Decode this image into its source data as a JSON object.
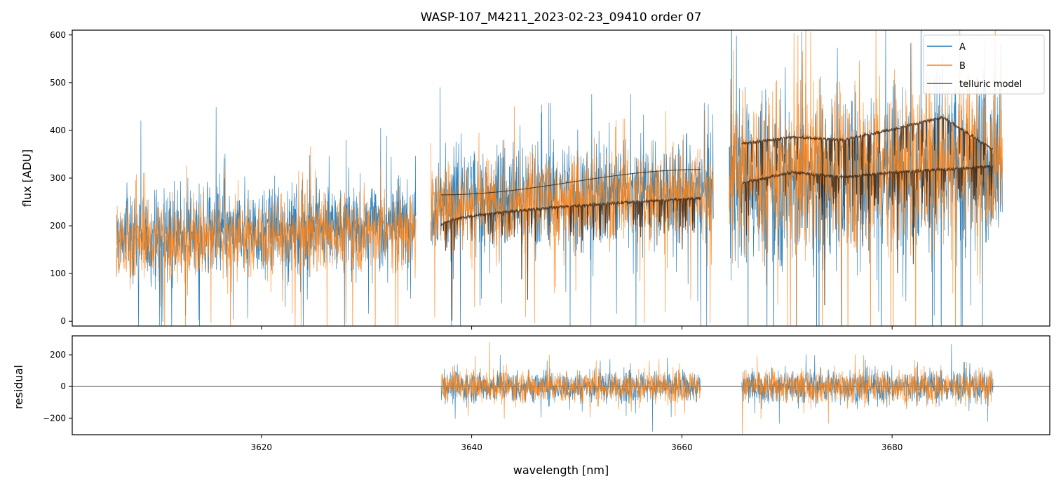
{
  "colors": {
    "A": "#1f77b4",
    "B": "#ff7f0e",
    "telluric": "#3d2412",
    "zero": "#555555"
  },
  "chart_data": [
    {
      "type": "line",
      "title": "WASP-107_M4211_2023-02-23_09410  order 07",
      "xlabel": "",
      "ylabel": "flux [ADU]",
      "xlim": [
        3602,
        3695
      ],
      "ylim": [
        -10,
        610
      ],
      "yticks": [
        0,
        100,
        200,
        300,
        400,
        500,
        600
      ],
      "xticks": [
        3620,
        3640,
        3660,
        3680
      ],
      "legend": {
        "position": "top-right",
        "entries": [
          "A",
          "B",
          "telluric model"
        ]
      },
      "segments": [
        {
          "x": [
            3606.2,
            3634.7
          ],
          "A_mean": 190,
          "A_scatter": 85,
          "B_mean": 180,
          "B_scatter": 70
        },
        {
          "x": [
            3636.1,
            3663.0
          ],
          "A_mean": 265,
          "A_scatter": 95,
          "B_mean": 255,
          "B_scatter": 80
        },
        {
          "x": [
            3664.5,
            3690.5
          ],
          "A_mean": 310,
          "A_scatter": 160,
          "B_mean": 330,
          "B_scatter": 150
        }
      ],
      "series": [
        {
          "name": "A",
          "type": "noisy-line"
        },
        {
          "name": "B",
          "type": "noisy-line"
        },
        {
          "name": "telluric model",
          "type": "line",
          "curves": [
            {
              "x": [
                3637.1,
                3661.8
              ],
              "start": 265,
              "end": 318,
              "smooth": true
            },
            {
              "x": [
                3637.1,
                3661.8
              ],
              "start": 200,
              "end": 258,
              "absorption": true
            },
            {
              "x": [
                3665.7,
                3689.6
              ],
              "base": [
                372,
                386,
                380,
                402,
                428,
                360
              ],
              "absorption": true
            },
            {
              "x": [
                3665.7,
                3689.6
              ],
              "base": [
                290,
                312,
                302,
                312,
                318,
                325
              ],
              "absorption": true
            }
          ]
        }
      ]
    },
    {
      "type": "line",
      "title": "",
      "xlabel": "wavelength [nm]",
      "ylabel": "residual",
      "xlim": [
        3602,
        3695
      ],
      "ylim": [
        -305,
        320
      ],
      "yticks": [
        200,
        0,
        -200
      ],
      "ytick_labels": [
        "200",
        "0",
        "−200"
      ],
      "xticks": [
        3620,
        3640,
        3660,
        3680
      ],
      "xtick_labels": [
        "3620",
        "3640",
        "3660",
        "3680"
      ],
      "segments": [
        {
          "x": [
            3637.1,
            3661.8
          ],
          "scatter": 85
        },
        {
          "x": [
            3665.7,
            3689.6
          ],
          "scatter": 90
        }
      ],
      "zero_line": 0
    }
  ]
}
